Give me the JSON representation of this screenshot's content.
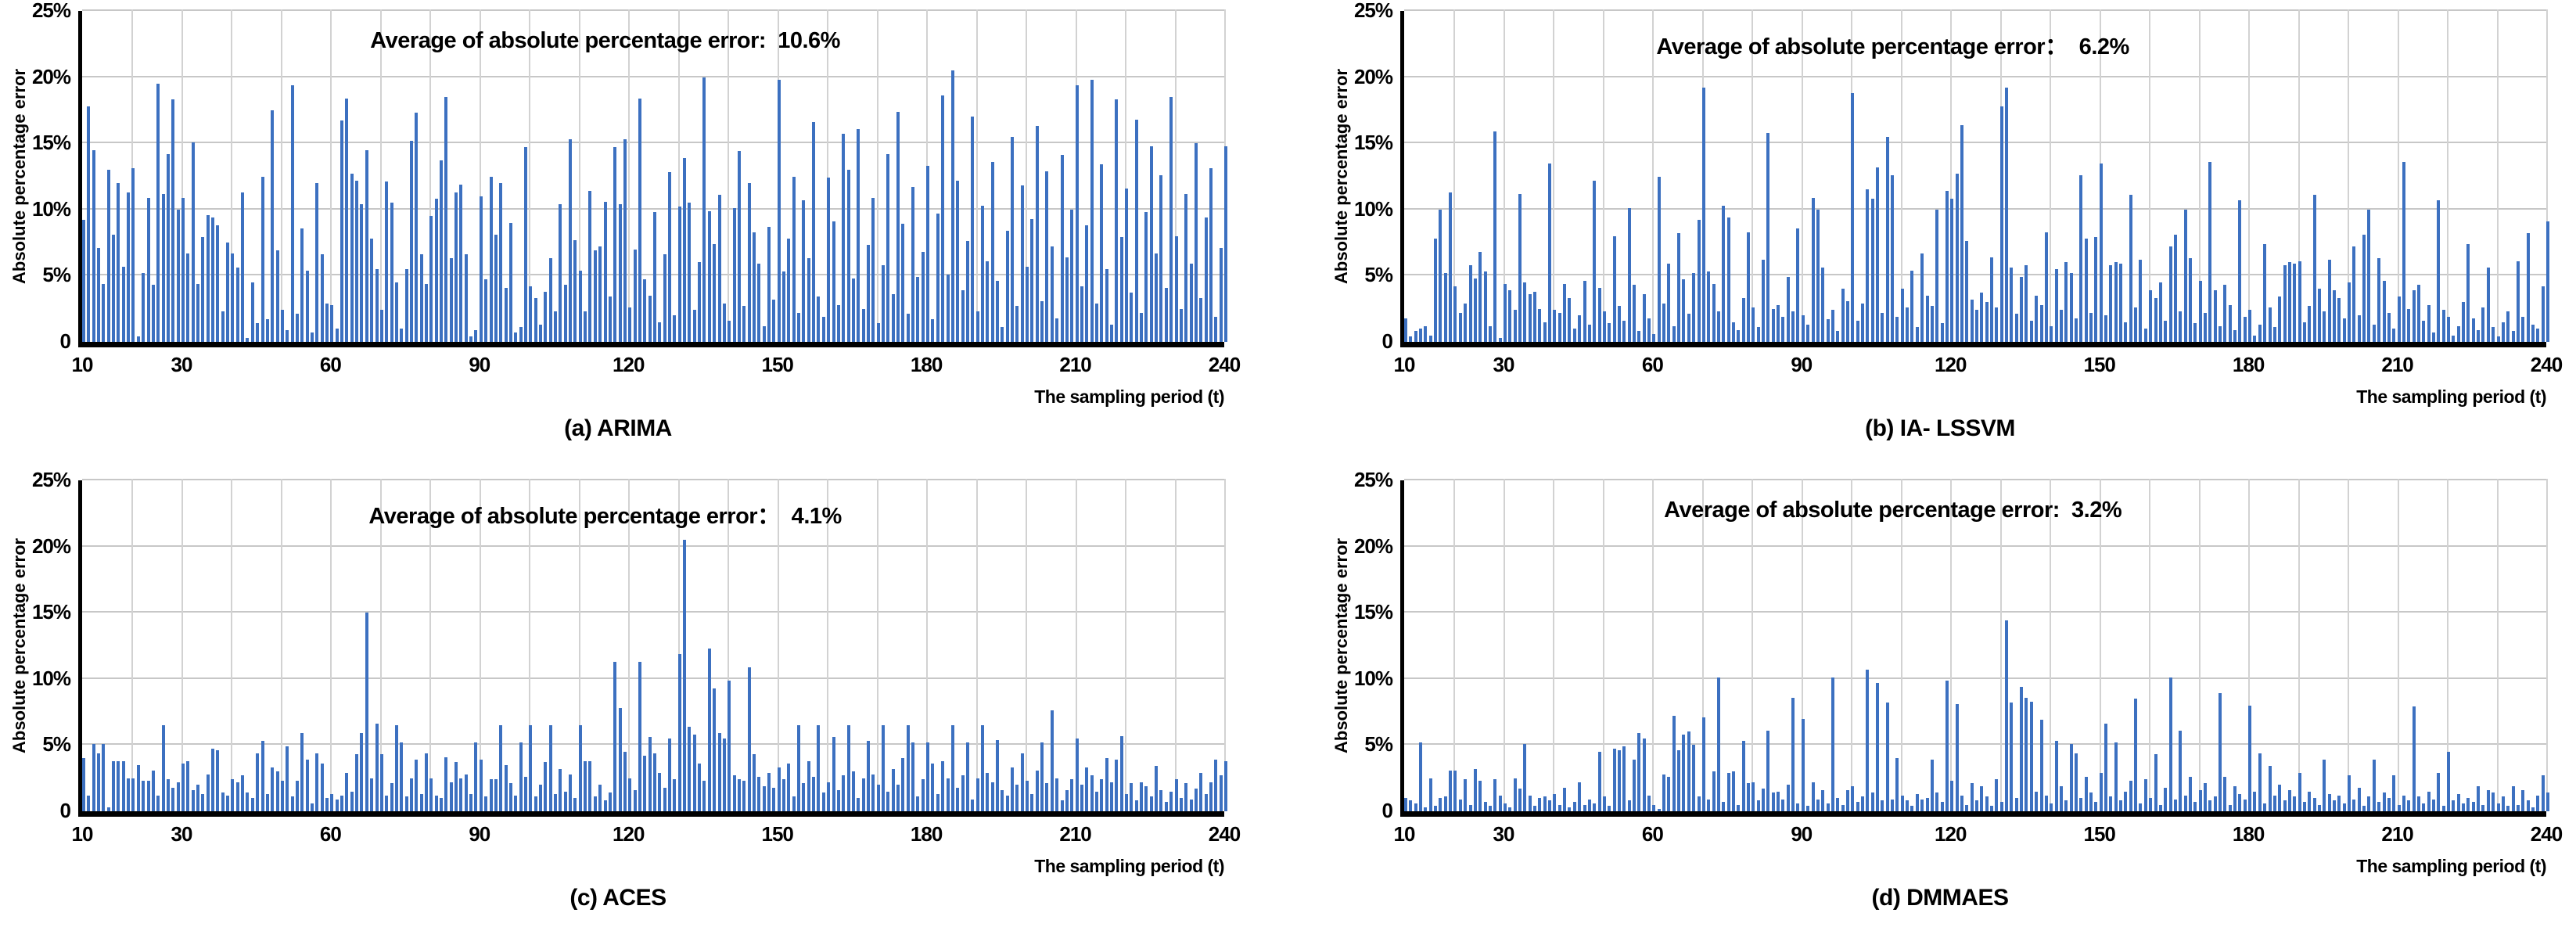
{
  "figure": {
    "background": "#ffffff",
    "bar_color": "#3c70c0",
    "hgrid_color": "#c7c7c7",
    "vgrid_color": "#d2d2d2",
    "axis_color": "#000000"
  },
  "chart_data": [
    {
      "type": "bar",
      "panel": "a",
      "title": "Average of absolute percentage error:  10.6%",
      "average": "10.6%",
      "caption": "(a) ARIMA",
      "ylabel": "Absolute percentage error",
      "xlabel": "The sampling period (t)",
      "ylim": [
        0,
        25
      ],
      "y_ticks": [
        "25%",
        "20%",
        "15%",
        "10%",
        "5%",
        "0"
      ],
      "x_ticks": [
        10,
        30,
        60,
        90,
        120,
        150,
        180,
        210,
        240
      ],
      "x_start": 10,
      "x_step": 1,
      "grid": true,
      "values": [
        9.2,
        17.8,
        14.5,
        7.1,
        4.4,
        13.0,
        8.1,
        12.0,
        5.7,
        11.3,
        13.1,
        0.4,
        5.2,
        10.9,
        4.3,
        19.5,
        11.2,
        14.2,
        18.3,
        10.0,
        10.9,
        6.7,
        15.1,
        4.4,
        7.9,
        9.6,
        9.4,
        8.8,
        2.3,
        7.5,
        6.7,
        5.6,
        11.3,
        0.3,
        4.5,
        1.4,
        12.5,
        1.7,
        17.5,
        6.9,
        2.4,
        0.9,
        19.4,
        2.1,
        8.6,
        5.4,
        0.7,
        12.0,
        6.6,
        2.9,
        2.8,
        1.0,
        16.7,
        18.4,
        12.7,
        12.2,
        10.4,
        14.5,
        7.8,
        5.5,
        2.4,
        12.1,
        10.5,
        4.5,
        1.0,
        5.5,
        15.2,
        17.3,
        6.6,
        4.4,
        9.5,
        10.8,
        13.7,
        18.5,
        6.3,
        11.3,
        11.9,
        6.6,
        0.4,
        0.9,
        11.0,
        4.7,
        12.5,
        8.1,
        12.0,
        4.1,
        9.0,
        0.7,
        1.1,
        14.7,
        4.2,
        3.3,
        1.3,
        3.8,
        6.3,
        2.3,
        10.4,
        4.3,
        15.3,
        7.7,
        5.4,
        2.3,
        11.4,
        6.9,
        7.2,
        10.6,
        3.4,
        14.7,
        10.4,
        15.3,
        2.6,
        7.0,
        18.4,
        4.7,
        3.5,
        9.8,
        1.5,
        6.6,
        12.8,
        2.0,
        10.2,
        13.9,
        10.5,
        2.4,
        6.0,
        20.0,
        9.9,
        7.4,
        11.1,
        2.9,
        1.6,
        10.1,
        14.4,
        2.7,
        12.0,
        8.3,
        5.9,
        1.2,
        8.7,
        3.2,
        19.8,
        5.3,
        7.8,
        12.5,
        2.2,
        10.7,
        6.3,
        16.6,
        3.4,
        1.9,
        12.4,
        9.1,
        2.8,
        15.7,
        13.0,
        4.8,
        16.1,
        2.5,
        7.3,
        10.9,
        1.4,
        5.8,
        14.2,
        3.6,
        17.4,
        8.9,
        2.1,
        11.7,
        4.9,
        6.8,
        13.3,
        1.7,
        9.7,
        18.6,
        5.1,
        20.5,
        12.2,
        3.9,
        7.6,
        17.0,
        2.3,
        10.3,
        6.1,
        13.6,
        4.6,
        1.1,
        8.4,
        15.5,
        2.7,
        11.8,
        5.7,
        9.3,
        16.3,
        3.1,
        12.9,
        7.2,
        1.8,
        14.1,
        6.4,
        10.0,
        19.4,
        4.2,
        8.8,
        19.8,
        2.9,
        13.4,
        5.5,
        1.3,
        18.3,
        7.9,
        11.6,
        3.7,
        16.8,
        2.2,
        9.8,
        14.8,
        6.7,
        12.6,
        4.1,
        18.5,
        8.0,
        2.5,
        11.2,
        5.9,
        15.0,
        3.3,
        9.4,
        13.1,
        1.9,
        7.1,
        14.8
      ]
    },
    {
      "type": "bar",
      "panel": "b",
      "title": "Average of absolute percentage error：  6.2%",
      "average": "6.2%",
      "caption": "(b) IA- LSSVM",
      "ylabel": "Absolute percentage error",
      "xlabel": "The sampling period (t)",
      "ylim": [
        0,
        25
      ],
      "y_ticks": [
        "25%",
        "20%",
        "15%",
        "10%",
        "5%",
        "0"
      ],
      "x_ticks": [
        10,
        30,
        60,
        90,
        120,
        150,
        180,
        210,
        240
      ],
      "x_start": 10,
      "x_step": 1,
      "grid": true,
      "values": [
        1.8,
        0.4,
        0.8,
        1.0,
        1.2,
        0.5,
        7.8,
        10.0,
        5.2,
        11.3,
        4.2,
        2.2,
        2.9,
        5.8,
        4.8,
        6.8,
        5.3,
        1.2,
        15.9,
        0.3,
        4.4,
        3.9,
        2.4,
        11.2,
        4.5,
        3.6,
        3.8,
        2.5,
        1.5,
        13.5,
        2.4,
        2.2,
        4.4,
        3.3,
        1.0,
        2.0,
        4.6,
        1.3,
        12.2,
        4.1,
        2.3,
        1.4,
        8.0,
        2.7,
        1.6,
        10.1,
        4.3,
        0.8,
        3.6,
        1.8,
        0.6,
        12.5,
        2.9,
        5.9,
        1.2,
        8.2,
        4.7,
        2.1,
        5.2,
        9.2,
        19.2,
        5.3,
        4.4,
        2.3,
        10.3,
        9.4,
        1.5,
        0.9,
        3.3,
        8.3,
        2.6,
        1.1,
        6.2,
        15.8,
        2.5,
        2.8,
        1.9,
        4.9,
        2.3,
        8.6,
        2.0,
        1.3,
        10.9,
        10.0,
        5.6,
        1.7,
        2.4,
        0.8,
        4.0,
        3.1,
        18.8,
        1.6,
        2.9,
        11.5,
        10.8,
        13.2,
        2.2,
        15.5,
        12.6,
        1.9,
        4.0,
        2.6,
        5.4,
        1.1,
        6.7,
        3.5,
        2.7,
        10.0,
        1.4,
        11.4,
        10.8,
        12.7,
        16.4,
        7.6,
        3.2,
        2.4,
        3.7,
        3.0,
        6.4,
        2.6,
        17.8,
        19.2,
        5.6,
        2.1,
        4.9,
        5.8,
        1.6,
        3.5,
        2.8,
        8.3,
        1.2,
        5.5,
        2.4,
        6.0,
        5.2,
        1.8,
        12.6,
        7.8,
        2.2,
        7.9,
        13.5,
        2.0,
        5.8,
        6.0,
        5.9,
        1.5,
        11.1,
        2.6,
        6.2,
        1.0,
        3.9,
        3.3,
        4.5,
        1.6,
        7.2,
        8.1,
        2.3,
        10.0,
        6.3,
        1.4,
        4.6,
        2.2,
        13.6,
        3.9,
        1.2,
        4.3,
        2.8,
        0.9,
        10.7,
        1.9,
        2.4,
        0.5,
        1.3,
        7.4,
        2.6,
        1.1,
        3.4,
        5.8,
        6.0,
        5.9,
        6.1,
        1.5,
        2.7,
        11.1,
        4.0,
        2.3,
        6.2,
        3.9,
        3.3,
        1.8,
        4.5,
        7.2,
        2.0,
        8.1,
        10.0,
        1.3,
        6.3,
        4.6,
        2.2,
        1.0,
        3.4,
        13.6,
        2.5,
        3.9,
        4.3,
        1.6,
        2.8,
        0.7,
        10.7,
        2.4,
        1.9,
        0.5,
        1.2,
        3.0,
        7.4,
        1.8,
        0.9,
        2.6,
        5.6,
        1.1,
        0.4,
        1.5,
        2.3,
        0.8,
        6.1,
        1.9,
        8.2,
        1.3,
        1.0,
        4.2,
        9.1
      ]
    },
    {
      "type": "bar",
      "panel": "c",
      "title": "Average of absolute percentage error：  4.1%",
      "average": "4.1%",
      "caption": "(c) ACES",
      "ylabel": "Absolute percentage error",
      "xlabel": "The sampling period (t)",
      "ylim": [
        0,
        25
      ],
      "y_ticks": [
        "25%",
        "20%",
        "15%",
        "10%",
        "5%",
        "0"
      ],
      "x_ticks": [
        10,
        30,
        60,
        90,
        120,
        150,
        180,
        210,
        240
      ],
      "x_start": 10,
      "x_step": 1,
      "grid": true,
      "values": [
        4.0,
        1.2,
        5.1,
        4.4,
        5.1,
        0.3,
        3.8,
        3.8,
        3.8,
        2.5,
        2.5,
        3.5,
        2.3,
        2.3,
        3.1,
        1.2,
        6.5,
        2.4,
        1.8,
        2.2,
        3.6,
        3.8,
        1.6,
        2.0,
        1.3,
        2.8,
        4.7,
        4.6,
        1.4,
        1.2,
        2.4,
        2.2,
        2.7,
        1.4,
        1.0,
        4.4,
        5.3,
        1.3,
        3.3,
        3.0,
        2.3,
        4.9,
        1.1,
        2.3,
        5.9,
        3.9,
        0.6,
        4.4,
        3.6,
        1.0,
        1.3,
        0.9,
        1.2,
        2.9,
        1.5,
        4.3,
        5.9,
        15.0,
        2.5,
        6.6,
        4.3,
        1.2,
        2.1,
        6.5,
        5.2,
        1.1,
        2.5,
        3.9,
        1.3,
        4.4,
        2.5,
        1.2,
        1.0,
        4.1,
        2.2,
        3.7,
        2.5,
        2.8,
        1.3,
        5.2,
        3.9,
        1.1,
        2.4,
        2.4,
        6.5,
        3.5,
        2.1,
        1.2,
        5.2,
        2.6,
        6.5,
        1.1,
        2.0,
        3.7,
        6.5,
        1.3,
        3.2,
        1.5,
        2.8,
        1.0,
        6.5,
        3.8,
        3.8,
        1.1,
        2.0,
        0.8,
        1.4,
        11.3,
        7.8,
        4.5,
        2.5,
        1.6,
        11.3,
        4.2,
        5.6,
        4.4,
        2.9,
        1.8,
        5.5,
        2.4,
        11.9,
        20.5,
        6.4,
        5.8,
        3.6,
        2.3,
        12.3,
        9.3,
        5.9,
        5.5,
        9.9,
        2.7,
        2.4,
        2.3,
        10.9,
        4.3,
        2.6,
        1.9,
        2.9,
        1.8,
        3.3,
        2.4,
        3.6,
        1.1,
        6.5,
        2.1,
        3.8,
        2.6,
        6.5,
        1.4,
        2.2,
        5.6,
        1.6,
        2.7,
        6.5,
        3.0,
        1.0,
        2.5,
        5.3,
        2.8,
        2.0,
        6.5,
        1.5,
        3.2,
        2.0,
        4.0,
        6.5,
        5.2,
        1.1,
        2.4,
        5.2,
        3.6,
        1.3,
        3.8,
        2.5,
        6.5,
        1.8,
        2.7,
        5.2,
        0.9,
        2.5,
        6.5,
        2.9,
        2.2,
        5.4,
        1.6,
        1.2,
        3.3,
        2.0,
        4.4,
        2.3,
        1.3,
        3.1,
        5.2,
        2.1,
        7.6,
        2.5,
        0.8,
        1.6,
        2.4,
        5.5,
        2.0,
        3.3,
        2.7,
        1.5,
        2.4,
        4.0,
        2.2,
        3.9,
        5.7,
        1.3,
        2.1,
        0.8,
        2.2,
        1.9,
        1.1,
        3.4,
        1.6,
        0.7,
        1.5,
        2.4,
        1.0,
        2.1,
        0.9,
        1.7,
        2.9,
        1.3,
        2.2,
        3.9,
        2.7,
        3.8
      ]
    },
    {
      "type": "bar",
      "panel": "d",
      "title": "Average of absolute percentage error:  3.2%",
      "average": "3.2%",
      "caption": "(d) DMMAES",
      "ylabel": "Absolute percentage error",
      "xlabel": "The sampling period (t)",
      "ylim": [
        0,
        25
      ],
      "y_ticks": [
        "25%",
        "20%",
        "15%",
        "10%",
        "5%",
        "0"
      ],
      "x_ticks": [
        10,
        30,
        60,
        90,
        120,
        150,
        180,
        210,
        240
      ],
      "x_start": 10,
      "x_step": 1,
      "grid": true,
      "values": [
        1.0,
        0.8,
        0.6,
        5.2,
        0.3,
        2.5,
        0.4,
        1.0,
        1.1,
        3.1,
        3.1,
        0.9,
        2.4,
        0.5,
        3.2,
        2.3,
        0.7,
        0.4,
        2.4,
        1.2,
        0.6,
        0.3,
        2.5,
        1.7,
        5.1,
        1.2,
        0.4,
        1.0,
        1.1,
        0.8,
        1.3,
        0.5,
        1.8,
        0.3,
        0.7,
        2.2,
        0.5,
        0.9,
        0.6,
        4.5,
        1.1,
        0.4,
        4.7,
        4.6,
        4.9,
        0.8,
        3.9,
        5.9,
        5.5,
        1.2,
        0.5,
        0.2,
        2.8,
        2.6,
        7.2,
        4.6,
        5.8,
        6.0,
        5.0,
        1.1,
        7.1,
        0.9,
        3.0,
        10.1,
        0.7,
        2.9,
        3.0,
        0.5,
        5.3,
        2.1,
        2.2,
        0.8,
        1.7,
        6.1,
        1.4,
        1.5,
        0.9,
        2.0,
        8.6,
        0.6,
        7.0,
        0.4,
        2.2,
        0.9,
        1.6,
        0.6,
        10.1,
        1.0,
        0.5,
        1.6,
        1.9,
        0.7,
        1.1,
        10.7,
        1.4,
        9.7,
        0.8,
        8.2,
        0.9,
        4.0,
        1.2,
        0.8,
        0.4,
        1.3,
        0.9,
        1.0,
        3.9,
        1.4,
        0.7,
        9.9,
        2.3,
        8.1,
        1.2,
        0.5,
        2.1,
        0.8,
        1.9,
        1.1,
        0.4,
        2.4,
        0.7,
        14.4,
        8.2,
        1.0,
        9.4,
        8.6,
        8.3,
        1.5,
        6.9,
        1.2,
        0.6,
        5.3,
        1.9,
        0.8,
        5.1,
        4.4,
        1.0,
        2.6,
        1.4,
        0.7,
        2.9,
        6.6,
        1.1,
        5.2,
        0.8,
        1.5,
        2.3,
        8.5,
        0.6,
        2.4,
        1.0,
        4.3,
        0.5,
        1.8,
        10.1,
        0.9,
        6.1,
        1.2,
        2.6,
        0.7,
        1.6,
        2.1,
        0.8,
        1.1,
        8.9,
        2.6,
        0.5,
        1.9,
        1.3,
        0.9,
        8.0,
        1.5,
        4.4,
        0.6,
        3.4,
        1.2,
        2.0,
        0.8,
        1.6,
        1.1,
        2.9,
        0.7,
        1.5,
        1.0,
        0.5,
        3.9,
        1.3,
        0.8,
        1.2,
        0.6,
        2.7,
        0.9,
        1.8,
        0.4,
        1.1,
        3.9,
        0.7,
        1.4,
        1.0,
        2.7,
        0.5,
        1.2,
        0.8,
        7.9,
        1.1,
        0.6,
        1.5,
        0.9,
        2.9,
        0.4,
        4.5,
        0.8,
        1.3,
        0.6,
        1.0,
        0.7,
        1.9,
        0.5,
        1.6,
        1.4,
        0.6,
        1.1,
        0.4,
        1.9,
        0.5,
        1.6,
        0.8,
        0.3,
        1.2,
        2.7,
        1.4
      ]
    }
  ]
}
